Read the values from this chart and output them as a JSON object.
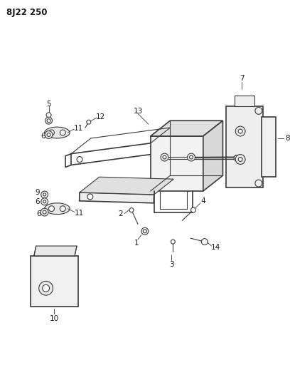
{
  "title": "8J22 250",
  "background_color": "#ffffff",
  "line_color": "#3a3a3a",
  "label_color": "#1a1a1a",
  "fig_width": 4.08,
  "fig_height": 5.33,
  "dpi": 100
}
